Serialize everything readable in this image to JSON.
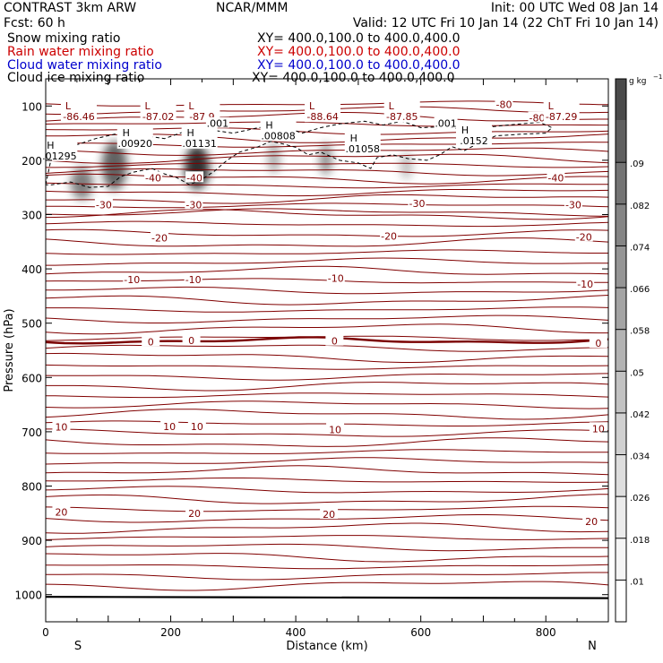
{
  "header": {
    "model": "CONTRAST  3km ARW",
    "center": "NCAR/MMM",
    "init": "Init: 00 UTC Wed 08 Jan 14",
    "fcst": "Fcst:   60 h",
    "valid": "Valid: 12 UTC Fri 10 Jan 14 (22 ChT Fri 10 Jan 14)"
  },
  "fields": [
    {
      "name": "Snow mixing ratio",
      "xy": "XY= 400.0,100.0 to 400.0,400.0",
      "color": "#000000"
    },
    {
      "name": "Rain water mixing ratio",
      "xy": "XY= 400.0,100.0 to 400.0,400.0",
      "color": "#cc0000"
    },
    {
      "name": "Cloud water mixing ratio",
      "xy": "XY= 400.0,100.0 to 400.0,400.0",
      "color": "#0000cc"
    },
    {
      "name": "Cloud ice mixing ratio",
      "xy": "XY= 400.0,100.0 to 400.0,400.0",
      "color": "#000000"
    }
  ],
  "colors": {
    "temp_contour": "#800000",
    "temp_zero": "#7a0000",
    "ice_contour": "#000000",
    "ground": "#000000"
  },
  "chart_data": {
    "type": "heatmap",
    "xlabel": "Distance (km)",
    "ylabel": "Pressure (hPa)",
    "xlim": [
      0,
      900
    ],
    "ylim": [
      1050,
      50
    ],
    "x_ticks": [
      0,
      200,
      400,
      600,
      800
    ],
    "y_ticks": [
      100,
      200,
      300,
      400,
      500,
      600,
      700,
      800,
      900,
      1000
    ],
    "endpoints": {
      "left": "S",
      "right": "N"
    },
    "colorbar": {
      "unit": "g kg",
      "unit_exp": "−1",
      "ticks": [
        ".01",
        ".018",
        ".026",
        ".034",
        ".042",
        ".05",
        ".058",
        ".066",
        ".074",
        ".082",
        ".09"
      ],
      "ramp": [
        "#ffffff",
        "#f5f5f5",
        "#ebebeb",
        "#dedede",
        "#d0d0d0",
        "#c2c2c2",
        "#b3b3b3",
        "#a4a4a4",
        "#959595",
        "#858585",
        "#747474",
        "#5f5f5f",
        "#4a4a4a"
      ]
    },
    "temperature_contours": [
      {
        "value": -80,
        "pressure": 97
      },
      {
        "value": -40,
        "pressure": 257
      },
      {
        "value": -30,
        "pressure": 292
      },
      {
        "value": -20,
        "pressure": 327
      },
      {
        "value": -10,
        "pressure": 397
      },
      {
        "value": 0,
        "pressure": 532
      },
      {
        "value": 10,
        "pressure": 678
      },
      {
        "value": 20,
        "pressure": 845
      }
    ],
    "temperature_labels": [
      {
        "text": "-80",
        "x": 733,
        "p": 97
      },
      {
        "text": "-80",
        "x": 786,
        "p": 122
      },
      {
        "text": "-40",
        "x": 172,
        "p": 232
      },
      {
        "text": "-40",
        "x": 238,
        "p": 232
      },
      {
        "text": "-40",
        "x": 816,
        "p": 232
      },
      {
        "text": "-30",
        "x": 93,
        "p": 282
      },
      {
        "text": "-30",
        "x": 237,
        "p": 282
      },
      {
        "text": "-30",
        "x": 594,
        "p": 279
      },
      {
        "text": "-30",
        "x": 844,
        "p": 282
      },
      {
        "text": "-20",
        "x": 182,
        "p": 343
      },
      {
        "text": "-20",
        "x": 549,
        "p": 340
      },
      {
        "text": "-20",
        "x": 861,
        "p": 341
      },
      {
        "text": "-10",
        "x": 138,
        "p": 420
      },
      {
        "text": "-10",
        "x": 236,
        "p": 420
      },
      {
        "text": "-10",
        "x": 464,
        "p": 417
      },
      {
        "text": "-10",
        "x": 863,
        "p": 428
      },
      {
        "text": "0",
        "x": 168,
        "p": 534
      },
      {
        "text": "0",
        "x": 233,
        "p": 532
      },
      {
        "text": "0",
        "x": 462,
        "p": 533
      },
      {
        "text": "0",
        "x": 884,
        "p": 537
      },
      {
        "text": "10",
        "x": 25,
        "p": 691
      },
      {
        "text": "10",
        "x": 198,
        "p": 690
      },
      {
        "text": "10",
        "x": 242,
        "p": 690
      },
      {
        "text": "10",
        "x": 463,
        "p": 696
      },
      {
        "text": "10",
        "x": 884,
        "p": 694
      },
      {
        "text": "20",
        "x": 25,
        "p": 848
      },
      {
        "text": "20",
        "x": 238,
        "p": 850
      },
      {
        "text": "20",
        "x": 453,
        "p": 852
      },
      {
        "text": "20",
        "x": 873,
        "p": 865
      }
    ],
    "extrema": [
      {
        "type": "L",
        "value": "-86.46",
        "x": 53,
        "p": 113
      },
      {
        "type": "L",
        "value": "-87.02",
        "x": 180,
        "p": 113
      },
      {
        "type": "L",
        "value": "-87.9",
        "x": 250,
        "p": 113
      },
      {
        "type": "L",
        "value": "-88.64",
        "x": 443,
        "p": 113
      },
      {
        "type": "L",
        "value": "-87.85",
        "x": 570,
        "p": 113
      },
      {
        "type": "L",
        "value": "-87.29",
        "x": 825,
        "p": 113
      },
      {
        "type": "H",
        "value": ".01295",
        "x": 22,
        "p": 185
      },
      {
        "type": "H",
        "value": ".00920",
        "x": 143,
        "p": 162
      },
      {
        "type": "H",
        "value": ".01131",
        "x": 246,
        "p": 162
      },
      {
        "type": "H",
        "value": ".00808",
        "x": 372,
        "p": 148
      },
      {
        "type": "H",
        "value": ".01058",
        "x": 507,
        "p": 172
      },
      {
        "type": "H",
        "value": ".0152",
        "x": 685,
        "p": 157
      }
    ],
    "ice_contour_labels": [
      {
        "text": ".001",
        "x": 275,
        "p": 132
      },
      {
        "text": ".001",
        "x": 640,
        "p": 132
      }
    ],
    "snow_blobs": [
      {
        "x": 58,
        "p": 242,
        "rx": 18,
        "rp": 30,
        "intensity": 0.55
      },
      {
        "x": 110,
        "p": 210,
        "rx": 20,
        "rp": 45,
        "intensity": 0.7
      },
      {
        "x": 242,
        "p": 213,
        "rx": 20,
        "rp": 40,
        "intensity": 0.95
      },
      {
        "x": 365,
        "p": 195,
        "rx": 10,
        "rp": 30,
        "intensity": 0.3
      },
      {
        "x": 448,
        "p": 198,
        "rx": 10,
        "rp": 30,
        "intensity": 0.45
      },
      {
        "x": 577,
        "p": 210,
        "rx": 10,
        "rp": 25,
        "intensity": 0.2
      }
    ],
    "ground_pressure": 1004
  }
}
